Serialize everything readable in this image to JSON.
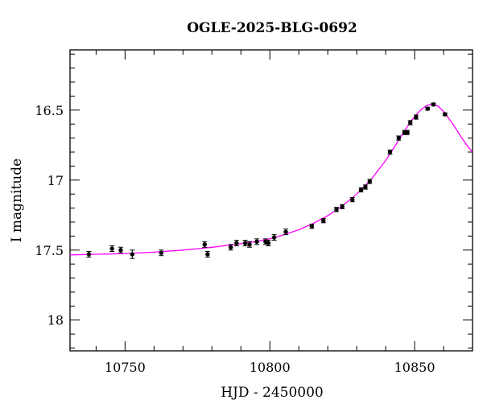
{
  "chart_data": {
    "type": "scatter",
    "title": "OGLE-2025-BLG-0692",
    "xlabel": "HJD - 2450000",
    "ylabel": "I magnitude",
    "xlim": [
      10731,
      10870
    ],
    "ylim": [
      18.22,
      16.07
    ],
    "y_inverted": true,
    "x_ticks_major": [
      10750,
      10800,
      10850
    ],
    "x_ticks_minor_step": 10,
    "y_ticks_major": [
      16.5,
      17,
      17.5,
      18
    ],
    "y_tick_labels": [
      "16.5",
      "17",
      "17.5",
      "18"
    ],
    "y_ticks_minor_step": 0.1,
    "grid": false,
    "series": [
      {
        "kind": "points",
        "color": "#000000",
        "points": [
          {
            "x": 10737.5,
            "y": 17.53,
            "err": 0.02
          },
          {
            "x": 10745.5,
            "y": 17.49,
            "err": 0.02
          },
          {
            "x": 10748.5,
            "y": 17.5,
            "err": 0.02
          },
          {
            "x": 10752.5,
            "y": 17.53,
            "err": 0.03
          },
          {
            "x": 10762.5,
            "y": 17.52,
            "err": 0.02
          },
          {
            "x": 10777.5,
            "y": 17.46,
            "err": 0.02
          },
          {
            "x": 10778.5,
            "y": 17.53,
            "err": 0.02
          },
          {
            "x": 10786.5,
            "y": 17.48,
            "err": 0.02
          },
          {
            "x": 10788.5,
            "y": 17.45,
            "err": 0.02
          },
          {
            "x": 10791.5,
            "y": 17.45,
            "err": 0.02
          },
          {
            "x": 10793.0,
            "y": 17.46,
            "err": 0.02
          },
          {
            "x": 10795.5,
            "y": 17.44,
            "err": 0.02
          },
          {
            "x": 10798.5,
            "y": 17.44,
            "err": 0.02
          },
          {
            "x": 10799.5,
            "y": 17.45,
            "err": 0.02
          },
          {
            "x": 10801.5,
            "y": 17.41,
            "err": 0.02
          },
          {
            "x": 10805.5,
            "y": 17.37,
            "err": 0.02
          },
          {
            "x": 10814.5,
            "y": 17.33,
            "err": 0.015
          },
          {
            "x": 10818.5,
            "y": 17.29,
            "err": 0.015
          },
          {
            "x": 10823.0,
            "y": 17.21,
            "err": 0.015
          },
          {
            "x": 10825.0,
            "y": 17.19,
            "err": 0.015
          },
          {
            "x": 10828.5,
            "y": 17.14,
            "err": 0.015
          },
          {
            "x": 10831.5,
            "y": 17.07,
            "err": 0.015
          },
          {
            "x": 10833.0,
            "y": 17.05,
            "err": 0.015
          },
          {
            "x": 10834.5,
            "y": 17.01,
            "err": 0.015
          },
          {
            "x": 10841.5,
            "y": 16.8,
            "err": 0.015
          },
          {
            "x": 10844.5,
            "y": 16.7,
            "err": 0.015
          },
          {
            "x": 10846.5,
            "y": 16.66,
            "err": 0.015
          },
          {
            "x": 10847.5,
            "y": 16.66,
            "err": 0.015
          },
          {
            "x": 10848.5,
            "y": 16.59,
            "err": 0.015
          },
          {
            "x": 10850.5,
            "y": 16.55,
            "err": 0.015
          },
          {
            "x": 10854.5,
            "y": 16.49,
            "err": 0.01
          },
          {
            "x": 10856.5,
            "y": 16.46,
            "err": 0.01
          },
          {
            "x": 10860.5,
            "y": 16.53,
            "err": 0.01
          }
        ]
      },
      {
        "kind": "line",
        "color": "#ff00ff",
        "points": [
          {
            "x": 10731,
            "y": 17.535
          },
          {
            "x": 10740,
            "y": 17.53
          },
          {
            "x": 10750,
            "y": 17.525
          },
          {
            "x": 10760,
            "y": 17.515
          },
          {
            "x": 10770,
            "y": 17.5
          },
          {
            "x": 10780,
            "y": 17.48
          },
          {
            "x": 10790,
            "y": 17.455
          },
          {
            "x": 10795,
            "y": 17.44
          },
          {
            "x": 10800,
            "y": 17.42
          },
          {
            "x": 10805,
            "y": 17.39
          },
          {
            "x": 10810,
            "y": 17.355
          },
          {
            "x": 10815,
            "y": 17.31
          },
          {
            "x": 10820,
            "y": 17.255
          },
          {
            "x": 10825,
            "y": 17.185
          },
          {
            "x": 10830,
            "y": 17.1
          },
          {
            "x": 10835,
            "y": 16.995
          },
          {
            "x": 10840,
            "y": 16.86
          },
          {
            "x": 10843,
            "y": 16.765
          },
          {
            "x": 10846,
            "y": 16.665
          },
          {
            "x": 10849,
            "y": 16.57
          },
          {
            "x": 10852,
            "y": 16.5
          },
          {
            "x": 10854,
            "y": 16.47
          },
          {
            "x": 10856,
            "y": 16.455
          },
          {
            "x": 10858,
            "y": 16.47
          },
          {
            "x": 10860,
            "y": 16.51
          },
          {
            "x": 10862,
            "y": 16.565
          },
          {
            "x": 10864,
            "y": 16.625
          },
          {
            "x": 10866,
            "y": 16.69
          },
          {
            "x": 10868,
            "y": 16.75
          },
          {
            "x": 10870,
            "y": 16.8
          }
        ]
      }
    ]
  }
}
